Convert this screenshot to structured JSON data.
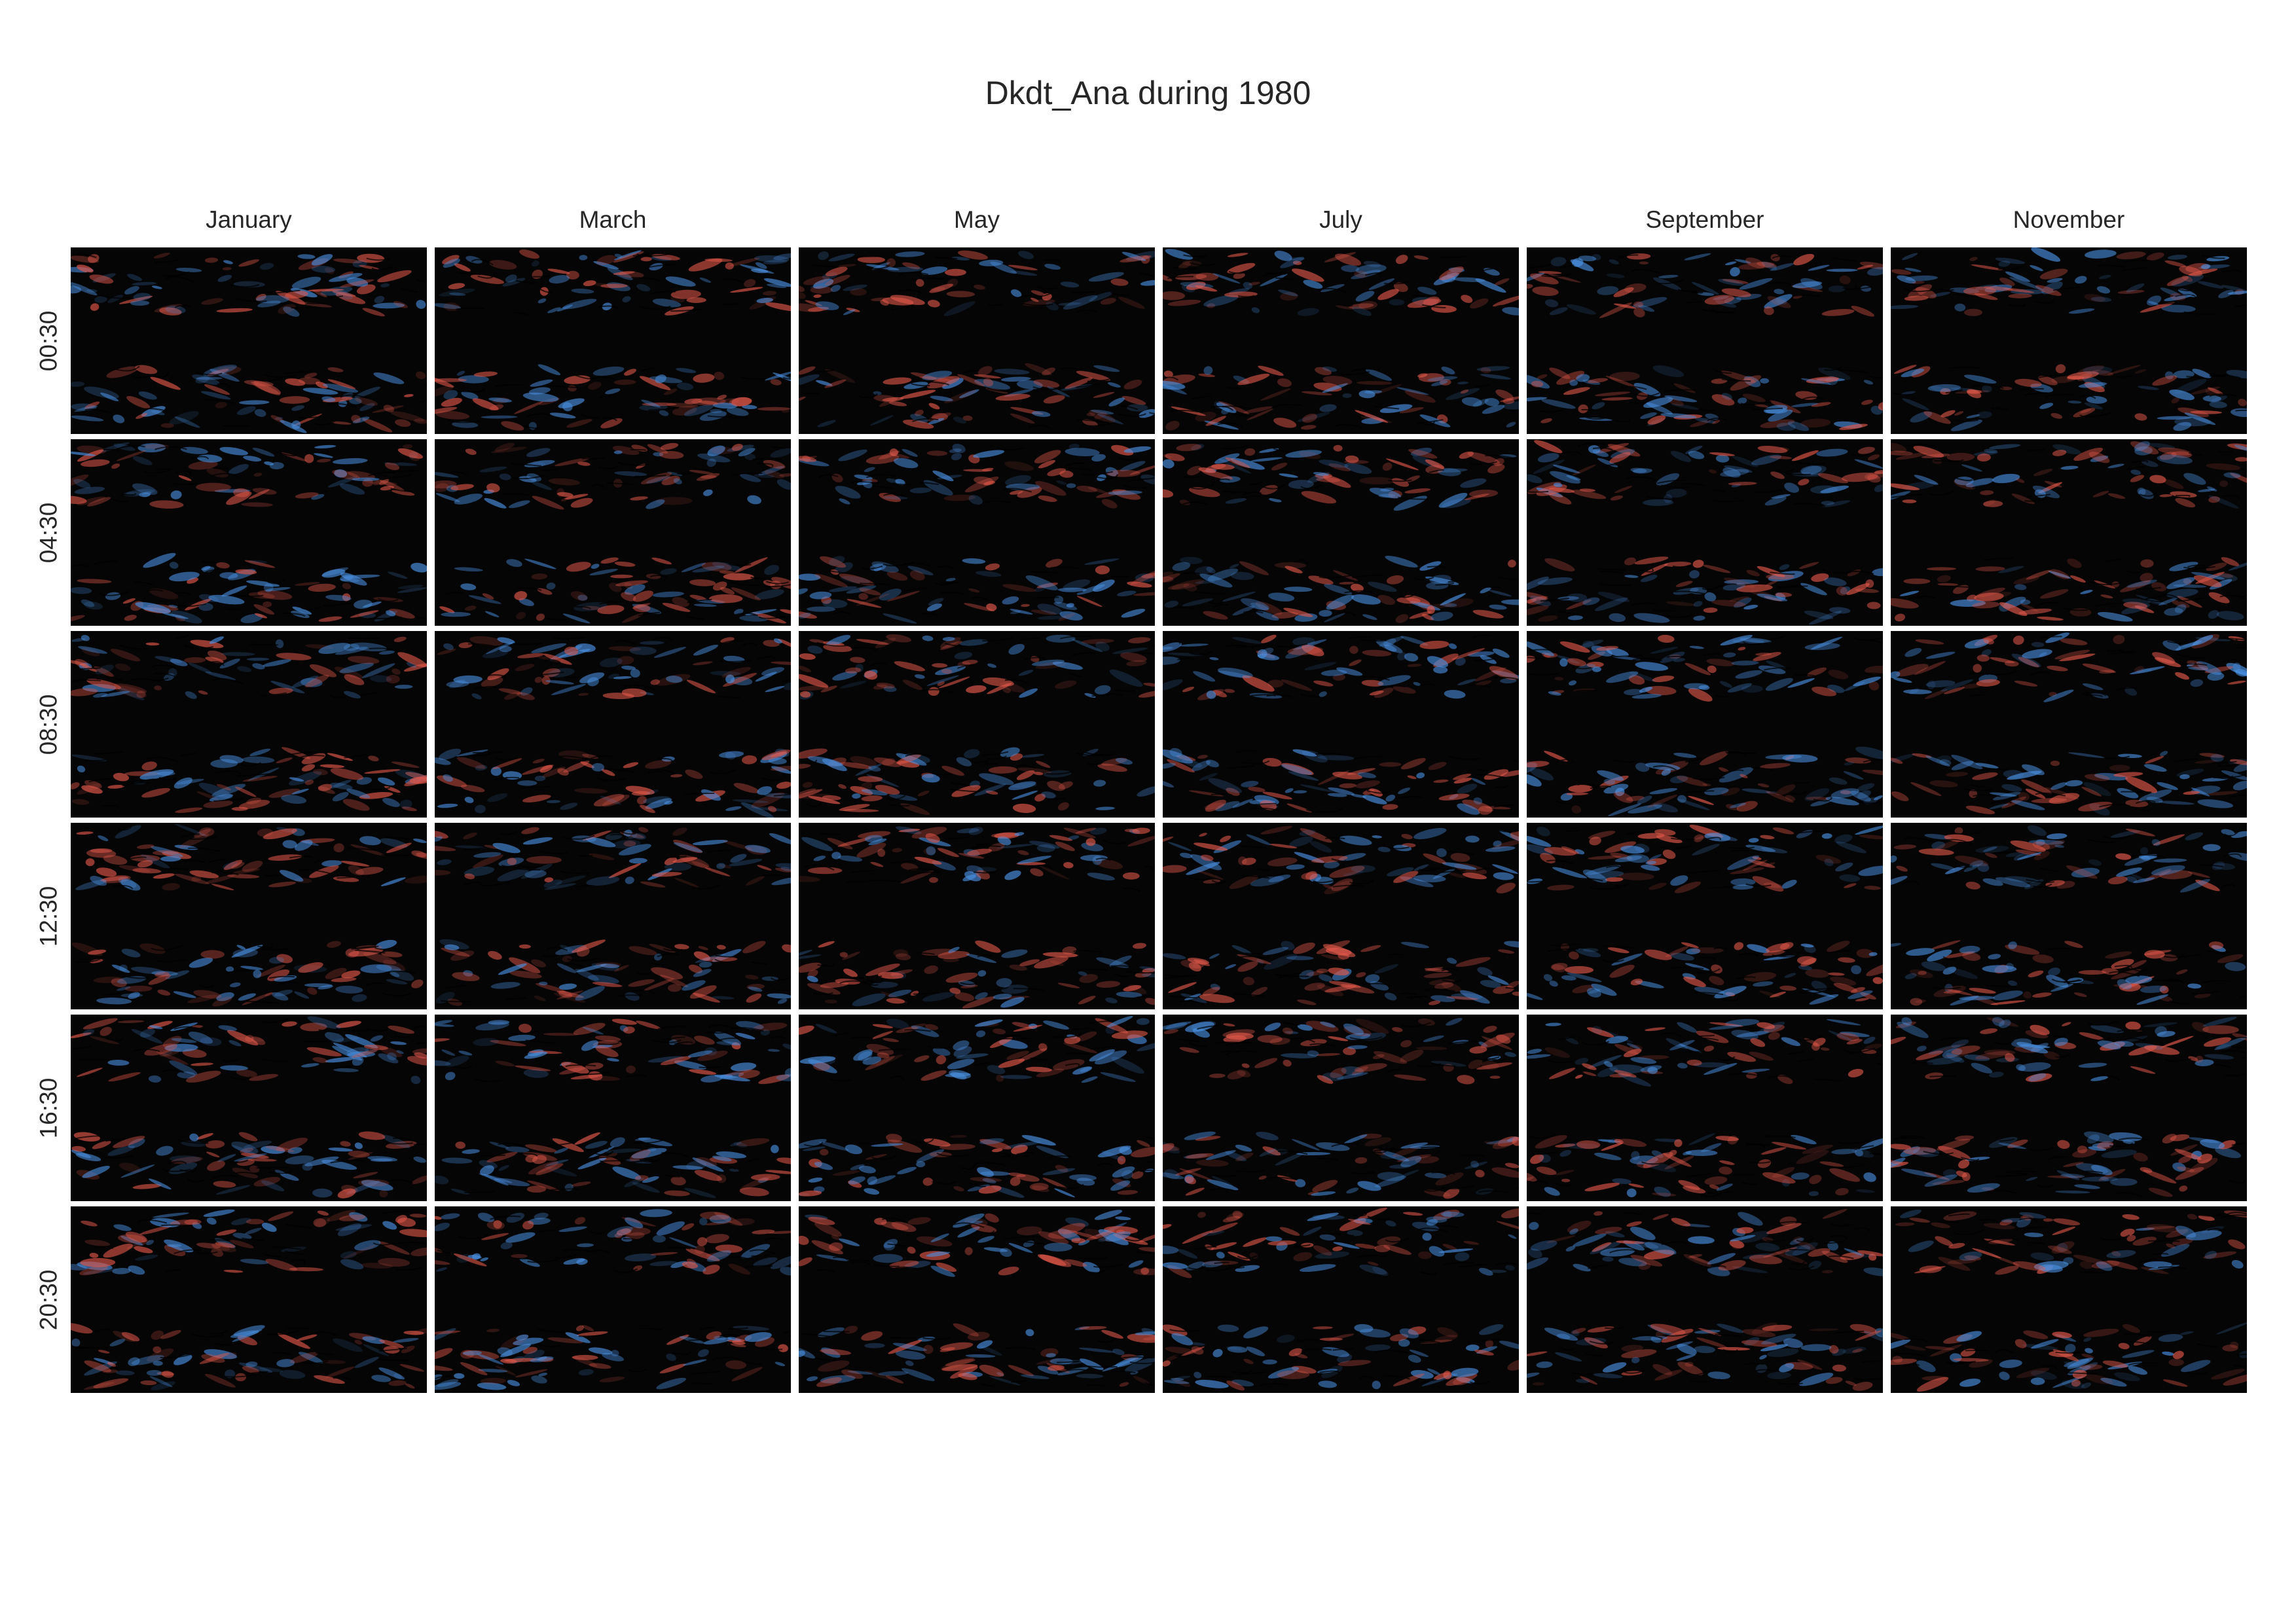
{
  "chart_data": {
    "type": "heatmap",
    "title": "Dkdt_Ana during 1980",
    "columns": [
      "January",
      "March",
      "May",
      "July",
      "September",
      "November"
    ],
    "rows": [
      "00:30",
      "04:30",
      "08:30",
      "12:30",
      "16:30",
      "20:30"
    ],
    "colormap": {
      "negative": "#4a90e2",
      "zero": "#050505",
      "positive": "#e2584a"
    },
    "features": "Colored positive/negative anomalies concentrated in two zonal bands (upper and lower thirds of each panel); middle band near zero.",
    "grid": false,
    "legend": "none"
  }
}
